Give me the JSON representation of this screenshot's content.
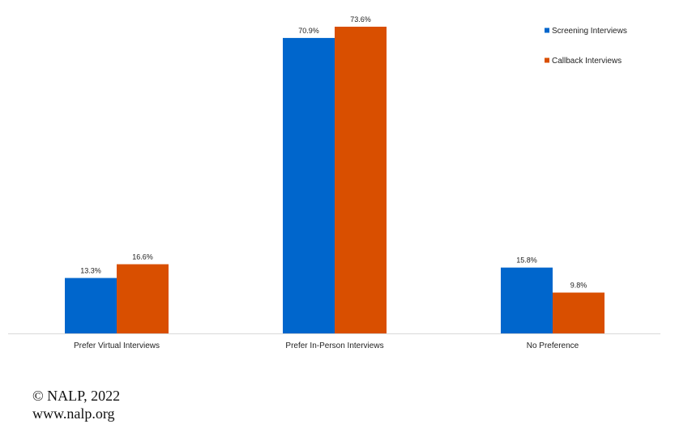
{
  "chart_data": {
    "type": "bar",
    "categories": [
      "Prefer Virtual Interviews",
      "Prefer In-Person Interviews",
      "No Preference"
    ],
    "series": [
      {
        "name": "Screening Interviews",
        "values": [
          13.3,
          70.9,
          15.8
        ],
        "labels": [
          "13.3%",
          "70.9%",
          "15.8%"
        ],
        "color": "#0066cc"
      },
      {
        "name": "Callback Interviews",
        "values": [
          16.6,
          73.6,
          9.8
        ],
        "labels": [
          "16.6%",
          "73.6%",
          "9.8%"
        ],
        "color": "#d94f00"
      }
    ],
    "ylim": [
      0,
      73.6
    ],
    "grid": false,
    "legend_position": "top-right"
  },
  "footer": {
    "copyright": "© NALP, 2022",
    "website": "www.nalp.org"
  }
}
